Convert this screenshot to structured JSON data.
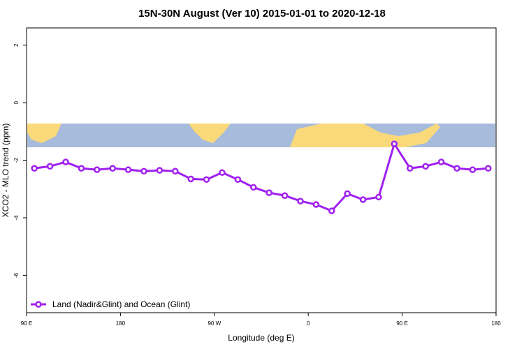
{
  "chart_data": {
    "type": "line",
    "title": "15N-30N August (Ver 10)   2015-01-01 to 2020-12-18",
    "x_label": "Longitude (deg E)",
    "y_label": "XCO2 - MLO trend (ppm)",
    "x": [
      97.5,
      112.5,
      127.5,
      142.5,
      157.5,
      172.5,
      187.5,
      202.5,
      217.5,
      232.5,
      247.5,
      262.5,
      277.5,
      292.5,
      307.5,
      322.5,
      337.5,
      352.5,
      367.5,
      382.5,
      397.5,
      412.5,
      427.5,
      442.5,
      457.5,
      472.5,
      487.5,
      502.5,
      517.5,
      532.5
    ],
    "series": [
      {
        "name": "Land (Nadir&Glint) and Ocean (Glint)",
        "color": "#a020f0",
        "values": [
          -2.28,
          -2.21,
          -2.06,
          -2.28,
          -2.33,
          -2.28,
          -2.33,
          -2.38,
          -2.35,
          -2.38,
          -2.65,
          -2.67,
          -2.43,
          -2.67,
          -2.94,
          -3.13,
          -3.23,
          -3.42,
          -3.54,
          -3.76,
          -3.16,
          -3.37,
          -3.28,
          -1.43,
          -2.28,
          -2.21,
          -2.06,
          -2.28,
          -2.33,
          -2.28
        ]
      }
    ],
    "xlim": [
      90,
      540
    ],
    "xticks": [
      {
        "value": 90,
        "label": "90 E"
      },
      180,
      {
        "value": 270,
        "label": "90 W"
      },
      {
        "value": 360,
        "label": "0"
      },
      {
        "value": 450,
        "label": "90 E"
      },
      {
        "value": 540,
        "label": "180"
      }
    ],
    "ylim": [
      -7.3,
      2.6
    ],
    "yticks": [
      2,
      0,
      -2,
      -4,
      -6
    ],
    "legend": "bottom-left"
  }
}
